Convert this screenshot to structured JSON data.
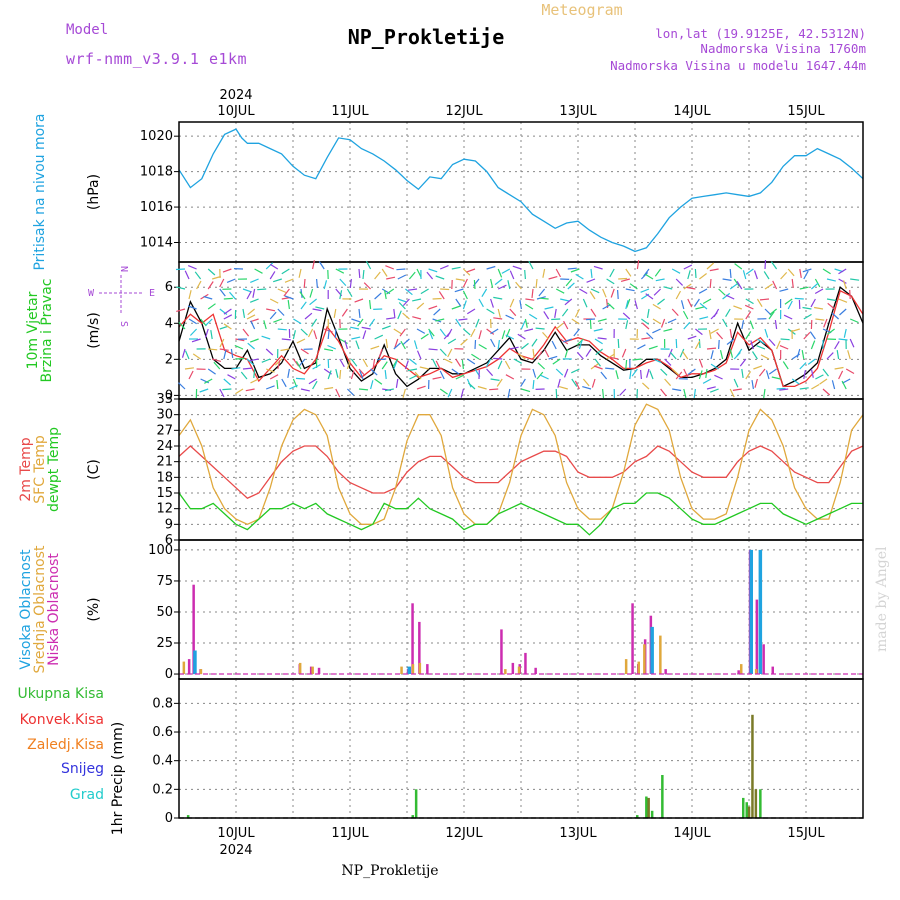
{
  "header": {
    "title": "NP_Prokletije",
    "subtitle": "Meteogram",
    "model_label": "Model",
    "model_name": "wrf-nmm_v3.9.1 e1km",
    "lonlat": "lon,lat (19.9125E, 42.5312N)",
    "altitude": "Nadmorska Visina 1760m",
    "model_altitude": "Nadmorska Visina u modelu 1647.44m",
    "watermark": "made by Angel",
    "footer": "NP_Prokletije"
  },
  "time_axis": {
    "year": "2024",
    "day_labels": [
      "10JUL",
      "11JUL",
      "12JUL",
      "13JUL",
      "14JUL",
      "15JUL"
    ],
    "start_day": 9.5,
    "end_day": 15.5,
    "unit": "day of July"
  },
  "colors": {
    "pressure": "#1fa3e0",
    "wind_speed": "#000000",
    "gust": "#ee3333",
    "temp2m": "#e84a4a",
    "sfc_temp": "#e0a83c",
    "dewpt": "#22c822",
    "high_cloud": "#1fa3e0",
    "mid_cloud": "#e0a83c",
    "low_cloud": "#cc2db0",
    "total_precip": "#33bb33",
    "convective_precip": "#ee3333",
    "frozen_precip": "#f08020",
    "snow": "#3333dd",
    "hail": "#22cccc",
    "mixed_bar": "#7a7a28"
  },
  "chart_data": [
    {
      "type": "line",
      "panel": "pressure",
      "ylabel_lines": [
        "Pritisak na nivou mora"
      ],
      "unit": "(hPa)",
      "yticks": [
        1014,
        1016,
        1018,
        1020
      ],
      "ylim": [
        1012.9,
        1020.8
      ],
      "grid": true,
      "series": [
        {
          "key": "pressure",
          "x": [
            9.5,
            9.6,
            9.7,
            9.8,
            9.9,
            10.0,
            10.05,
            10.1,
            10.2,
            10.3,
            10.4,
            10.5,
            10.6,
            10.7,
            10.8,
            10.9,
            11.0,
            11.1,
            11.2,
            11.3,
            11.4,
            11.5,
            11.6,
            11.7,
            11.8,
            11.9,
            12.0,
            12.1,
            12.2,
            12.3,
            12.4,
            12.5,
            12.6,
            12.7,
            12.8,
            12.9,
            13.0,
            13.1,
            13.2,
            13.3,
            13.4,
            13.5,
            13.55,
            13.6,
            13.7,
            13.8,
            13.9,
            14.0,
            14.1,
            14.2,
            14.3,
            14.4,
            14.5,
            14.6,
            14.7,
            14.8,
            14.9,
            15.0,
            15.1,
            15.2,
            15.3,
            15.4,
            15.5
          ],
          "y": [
            1018.1,
            1017.1,
            1017.6,
            1019.0,
            1020.1,
            1020.4,
            1019.9,
            1019.6,
            1019.6,
            1019.3,
            1019.0,
            1018.3,
            1017.8,
            1017.6,
            1018.8,
            1019.9,
            1019.8,
            1019.3,
            1019.0,
            1018.6,
            1018.1,
            1017.5,
            1017.0,
            1017.7,
            1017.6,
            1018.4,
            1018.7,
            1018.6,
            1018.0,
            1017.1,
            1016.7,
            1016.3,
            1015.6,
            1015.2,
            1014.8,
            1015.1,
            1015.2,
            1014.7,
            1014.3,
            1014.0,
            1013.8,
            1013.5,
            1013.6,
            1013.7,
            1014.5,
            1015.4,
            1016.0,
            1016.5,
            1016.6,
            1016.7,
            1016.8,
            1016.7,
            1016.6,
            1016.8,
            1017.4,
            1018.3,
            1018.9,
            1018.9,
            1019.3,
            1019.0,
            1018.7,
            1018.2,
            1017.6
          ]
        }
      ]
    },
    {
      "type": "line",
      "panel": "wind",
      "ylabel_lines": [
        "10m Vjetar",
        "Brzina i Pravac"
      ],
      "unit": "(m/s)",
      "compass": [
        "N",
        "W",
        "E",
        "S"
      ],
      "yticks": [
        0,
        2,
        4,
        6
      ],
      "ylim": [
        -0.2,
        7.4
      ],
      "grid": true,
      "series": [
        {
          "key": "wind_speed",
          "x": [
            9.5,
            9.6,
            9.7,
            9.8,
            9.9,
            10.0,
            10.1,
            10.2,
            10.3,
            10.4,
            10.5,
            10.6,
            10.7,
            10.8,
            10.9,
            11.0,
            11.1,
            11.2,
            11.3,
            11.4,
            11.5,
            11.6,
            11.7,
            11.8,
            11.9,
            12.0,
            12.1,
            12.2,
            12.3,
            12.4,
            12.5,
            12.6,
            12.7,
            12.8,
            12.9,
            13.0,
            13.1,
            13.2,
            13.3,
            13.4,
            13.5,
            13.6,
            13.7,
            13.8,
            13.9,
            14.0,
            14.1,
            14.2,
            14.3,
            14.4,
            14.5,
            14.6,
            14.7,
            14.8,
            14.9,
            15.0,
            15.1,
            15.2,
            15.3,
            15.4,
            15.5
          ],
          "y": [
            3.0,
            5.2,
            4.0,
            2.0,
            1.5,
            1.5,
            2.5,
            1.0,
            1.2,
            1.8,
            3.0,
            1.5,
            1.8,
            4.8,
            3.2,
            1.5,
            0.8,
            1.2,
            2.8,
            1.2,
            0.5,
            0.9,
            1.5,
            1.5,
            1.2,
            1.2,
            1.5,
            1.8,
            2.5,
            3.2,
            2.0,
            1.8,
            2.5,
            3.5,
            2.5,
            2.8,
            2.8,
            2.2,
            1.8,
            1.4,
            1.5,
            2.0,
            2.0,
            1.5,
            1.0,
            1.0,
            1.2,
            1.5,
            2.0,
            4.0,
            2.5,
            3.0,
            2.5,
            0.5,
            0.8,
            1.2,
            1.8,
            4.0,
            6.0,
            5.5,
            4.0
          ]
        },
        {
          "key": "gust",
          "x": [
            9.5,
            9.6,
            9.7,
            9.8,
            9.9,
            10.0,
            10.1,
            10.2,
            10.3,
            10.4,
            10.5,
            10.6,
            10.7,
            10.8,
            10.9,
            11.0,
            11.1,
            11.2,
            11.3,
            11.4,
            11.5,
            11.6,
            11.7,
            11.8,
            11.9,
            12.0,
            12.1,
            12.2,
            12.3,
            12.4,
            12.5,
            12.6,
            12.7,
            12.8,
            12.9,
            13.0,
            13.1,
            13.2,
            13.3,
            13.4,
            13.5,
            13.6,
            13.7,
            13.8,
            13.9,
            14.0,
            14.1,
            14.2,
            14.3,
            14.4,
            14.5,
            14.6,
            14.7,
            14.8,
            14.9,
            15.0,
            15.1,
            15.2,
            15.3,
            15.4,
            15.5
          ],
          "y": [
            3.8,
            4.5,
            4.0,
            4.5,
            2.5,
            2.2,
            2.0,
            0.8,
            1.5,
            2.2,
            1.5,
            1.2,
            2.0,
            3.8,
            3.0,
            1.8,
            1.0,
            1.5,
            2.2,
            2.0,
            1.5,
            1.0,
            1.2,
            1.5,
            1.0,
            1.2,
            1.4,
            1.6,
            2.0,
            2.6,
            2.2,
            2.0,
            2.8,
            3.8,
            3.0,
            3.2,
            3.0,
            2.4,
            2.0,
            1.5,
            1.5,
            1.8,
            2.0,
            1.6,
            1.0,
            1.2,
            1.2,
            1.4,
            1.8,
            3.5,
            2.8,
            3.2,
            2.5,
            0.5,
            0.5,
            0.8,
            1.5,
            3.5,
            5.8,
            5.5,
            4.5
          ]
        }
      ]
    },
    {
      "type": "line",
      "panel": "temperature",
      "ylabel_lines": [
        "2m Temp",
        "SFC Temp",
        "dewpt Temp"
      ],
      "unit": "(C)",
      "yticks": [
        6,
        9,
        12,
        15,
        18,
        21,
        24,
        27,
        30,
        33
      ],
      "ylim": [
        6,
        33
      ],
      "grid": true,
      "series": [
        {
          "key": "temp2m",
          "x": [
            9.5,
            9.6,
            9.7,
            9.8,
            9.9,
            10.0,
            10.1,
            10.2,
            10.3,
            10.4,
            10.5,
            10.6,
            10.7,
            10.8,
            10.9,
            11.0,
            11.1,
            11.2,
            11.3,
            11.4,
            11.5,
            11.6,
            11.7,
            11.8,
            11.9,
            12.0,
            12.1,
            12.2,
            12.3,
            12.4,
            12.5,
            12.6,
            12.7,
            12.8,
            12.9,
            13.0,
            13.1,
            13.2,
            13.3,
            13.4,
            13.5,
            13.6,
            13.7,
            13.8,
            13.9,
            14.0,
            14.1,
            14.2,
            14.3,
            14.4,
            14.5,
            14.6,
            14.7,
            14.8,
            14.9,
            15.0,
            15.1,
            15.2,
            15.3,
            15.4,
            15.5
          ],
          "y": [
            22,
            24,
            22,
            20,
            18,
            16,
            14,
            15,
            18,
            21,
            23,
            24,
            24,
            22,
            19,
            17,
            16,
            15,
            15,
            16,
            19,
            21,
            22,
            22,
            20,
            18,
            17,
            17,
            17,
            19,
            21,
            22,
            23,
            23,
            22,
            19,
            18,
            18,
            18,
            19,
            21,
            22,
            24,
            23,
            21,
            19,
            18,
            18,
            18,
            21,
            23,
            24,
            23,
            21,
            19,
            18,
            17,
            17,
            20,
            23,
            24
          ]
        },
        {
          "key": "sfc_temp",
          "x": [
            9.5,
            9.6,
            9.7,
            9.8,
            9.9,
            10.0,
            10.1,
            10.2,
            10.3,
            10.4,
            10.5,
            10.6,
            10.7,
            10.8,
            10.9,
            11.0,
            11.1,
            11.2,
            11.3,
            11.4,
            11.5,
            11.6,
            11.7,
            11.8,
            11.9,
            12.0,
            12.1,
            12.2,
            12.3,
            12.4,
            12.5,
            12.6,
            12.7,
            12.8,
            12.9,
            13.0,
            13.1,
            13.2,
            13.3,
            13.4,
            13.5,
            13.6,
            13.7,
            13.8,
            13.9,
            14.0,
            14.1,
            14.2,
            14.3,
            14.4,
            14.5,
            14.6,
            14.7,
            14.8,
            14.9,
            15.0,
            15.1,
            15.2,
            15.3,
            15.4,
            15.5
          ],
          "y": [
            26,
            29,
            24,
            16,
            12,
            10,
            9,
            10,
            16,
            24,
            29,
            31,
            30,
            26,
            16,
            11,
            9,
            9,
            10,
            16,
            25,
            30,
            30,
            26,
            16,
            11,
            9,
            9,
            11,
            17,
            26,
            31,
            30,
            26,
            17,
            12,
            10,
            10,
            12,
            19,
            28,
            32,
            31,
            27,
            18,
            12,
            10,
            10,
            11,
            18,
            27,
            31,
            29,
            24,
            16,
            12,
            10,
            10,
            17,
            27,
            30
          ]
        },
        {
          "key": "dewpt",
          "x": [
            9.5,
            9.6,
            9.7,
            9.8,
            9.9,
            10.0,
            10.1,
            10.2,
            10.3,
            10.4,
            10.5,
            10.6,
            10.7,
            10.8,
            10.9,
            11.0,
            11.1,
            11.2,
            11.3,
            11.4,
            11.5,
            11.6,
            11.7,
            11.8,
            11.9,
            12.0,
            12.1,
            12.2,
            12.3,
            12.4,
            12.5,
            12.6,
            12.7,
            12.8,
            12.9,
            13.0,
            13.1,
            13.2,
            13.3,
            13.4,
            13.5,
            13.6,
            13.7,
            13.8,
            13.9,
            14.0,
            14.1,
            14.2,
            14.3,
            14.4,
            14.5,
            14.6,
            14.7,
            14.8,
            14.9,
            15.0,
            15.1,
            15.2,
            15.3,
            15.4,
            15.5
          ],
          "y": [
            15,
            12,
            12,
            13,
            11,
            9,
            8,
            10,
            12,
            12,
            13,
            12,
            13,
            11,
            10,
            9,
            8,
            9,
            13,
            12,
            12,
            14,
            12,
            11,
            10,
            8,
            9,
            9,
            11,
            12,
            13,
            12,
            11,
            10,
            9,
            9,
            7,
            9,
            12,
            13,
            13,
            15,
            15,
            14,
            12,
            10,
            9,
            9,
            10,
            11,
            12,
            13,
            13,
            11,
            10,
            9,
            10,
            11,
            12,
            13,
            13
          ]
        }
      ]
    },
    {
      "type": "bar",
      "panel": "clouds",
      "ylabel_lines": [
        "Visoka Oblacnost",
        "Srednja Oblacnost",
        "Niska Oblacnost"
      ],
      "unit": "(%)",
      "yticks": [
        0,
        25,
        50,
        75,
        100
      ],
      "ylim": [
        -4,
        108
      ],
      "grid": true,
      "series": [
        {
          "key": "low_cloud",
          "x": [
            9.58,
            9.62,
            9.68,
            10.55,
            10.65,
            10.72,
            11.5,
            11.54,
            11.6,
            11.67,
            12.32,
            12.42,
            12.48,
            12.53,
            12.62,
            13.47,
            13.52,
            13.58,
            13.63,
            13.76,
            14.4,
            14.5,
            14.56,
            14.62,
            14.7
          ],
          "y": [
            12,
            72,
            4,
            8,
            6,
            5,
            4,
            57,
            42,
            8,
            36,
            9,
            8,
            17,
            5,
            57,
            8,
            28,
            47,
            4,
            3,
            100,
            60,
            24,
            6
          ]
        },
        {
          "key": "mid_cloud",
          "x": [
            9.56,
            9.66,
            9.71,
            10.58,
            10.69,
            11.47,
            11.57,
            11.63,
            12.38,
            12.5,
            13.44,
            13.55,
            13.6,
            13.74,
            14.45,
            14.58
          ],
          "y": [
            10,
            8,
            4,
            9,
            6,
            6,
            8,
            9,
            4,
            6,
            12,
            10,
            24,
            31,
            8,
            4
          ]
        },
        {
          "key": "high_cloud",
          "x": [
            9.64,
            11.52,
            13.65,
            14.52,
            14.6
          ],
          "y": [
            19,
            6,
            38,
            100,
            100
          ]
        }
      ]
    },
    {
      "type": "bar",
      "panel": "precip",
      "ylabel_lines": [
        "1hr Precip (mm)"
      ],
      "legend": [
        "Ukupna Kisa",
        "Konvek.Kisa",
        "Zaledj.Kisa",
        "Snijeg",
        "Grad"
      ],
      "yticks": [
        0,
        0.2,
        0.4,
        0.6,
        0.8
      ],
      "ylim": [
        0,
        0.97
      ],
      "grid": true,
      "series": [
        {
          "key": "total_precip",
          "x": [
            9.58,
            11.55,
            11.58,
            13.52,
            13.6,
            13.65,
            13.74,
            14.45,
            14.48,
            14.6
          ],
          "y": [
            0.02,
            0.02,
            0.2,
            0.02,
            0.15,
            0.05,
            0.3,
            0.14,
            0.11,
            0.2
          ]
        },
        {
          "key": "mixed_bar",
          "x": [
            13.62,
            14.5,
            14.53,
            14.56
          ],
          "y": [
            0.14,
            0.08,
            0.72,
            0.2
          ]
        }
      ]
    }
  ]
}
